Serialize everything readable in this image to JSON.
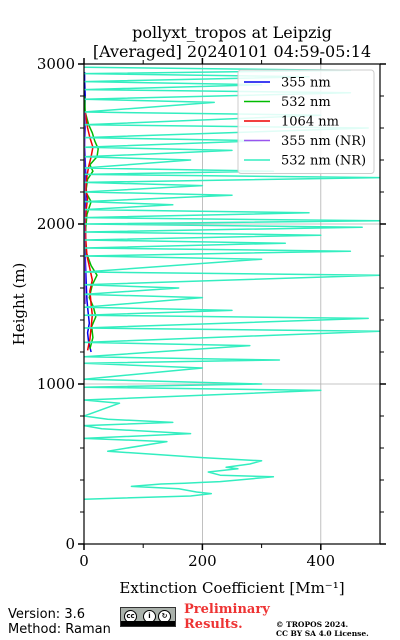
{
  "chart_data": {
    "type": "line",
    "title": "pollyxt_tropos at Leipzig",
    "subtitle": "[Averaged] 20240101 04:59-05:14",
    "xlabel": "Extinction Coefficient [Mm⁻¹]",
    "ylabel": "Height (m)",
    "xlim": [
      0,
      500
    ],
    "ylim": [
      0,
      3000
    ],
    "xticks": [
      "0",
      "200",
      "400"
    ],
    "yticks": [
      "0",
      "1000",
      "2000",
      "3000"
    ],
    "grid": true,
    "legend_position": "top-right",
    "series": [
      {
        "name": "355 nm",
        "color": "#0000ee",
        "points": [
          [
            12,
            1200
          ],
          [
            8,
            1260
          ],
          [
            6,
            1320
          ],
          [
            9,
            1380
          ],
          [
            7,
            1450
          ],
          [
            5,
            1520
          ],
          [
            4,
            1600
          ],
          [
            3,
            1700
          ],
          [
            2,
            1800
          ],
          [
            2,
            1900
          ],
          [
            3,
            2000
          ],
          [
            2,
            2100
          ],
          [
            4,
            2200
          ],
          [
            3,
            2300
          ],
          [
            2,
            2400
          ],
          [
            1,
            2500
          ],
          [
            2,
            2600
          ],
          [
            1,
            2700
          ],
          [
            2,
            2800
          ],
          [
            1,
            2900
          ],
          [
            1,
            2950
          ]
        ]
      },
      {
        "name": "532 nm",
        "color": "#00bb00",
        "points": [
          [
            10,
            1220
          ],
          [
            15,
            1290
          ],
          [
            13,
            1360
          ],
          [
            20,
            1420
          ],
          [
            16,
            1480
          ],
          [
            9,
            1540
          ],
          [
            14,
            1620
          ],
          [
            22,
            1680
          ],
          [
            12,
            1740
          ],
          [
            4,
            1820
          ],
          [
            2,
            1900
          ],
          [
            3,
            1980
          ],
          [
            5,
            2060
          ],
          [
            12,
            2140
          ],
          [
            3,
            2200
          ],
          [
            6,
            2280
          ],
          [
            15,
            2330
          ],
          [
            10,
            2370
          ],
          [
            22,
            2420
          ],
          [
            24,
            2470
          ],
          [
            18,
            2520
          ],
          [
            14,
            2570
          ],
          [
            8,
            2620
          ],
          [
            2,
            2700
          ],
          [
            1,
            2800
          ]
        ]
      },
      {
        "name": "1064 nm",
        "color": "#ee0000",
        "points": [
          [
            6,
            1210
          ],
          [
            10,
            1280
          ],
          [
            12,
            1350
          ],
          [
            14,
            1430
          ],
          [
            12,
            1500
          ],
          [
            10,
            1580
          ],
          [
            14,
            1650
          ],
          [
            10,
            1720
          ],
          [
            5,
            1800
          ],
          [
            3,
            1900
          ],
          [
            2,
            2000
          ],
          [
            4,
            2100
          ],
          [
            6,
            2160
          ],
          [
            3,
            2220
          ],
          [
            5,
            2300
          ],
          [
            8,
            2360
          ],
          [
            12,
            2420
          ],
          [
            15,
            2480
          ],
          [
            10,
            2540
          ],
          [
            6,
            2600
          ],
          [
            2,
            2700
          ]
        ]
      },
      {
        "name": "355 nm (NR)",
        "color": "#9955ee",
        "points": [
          [
            2,
            1500
          ],
          [
            1,
            1800
          ],
          [
            1,
            2100
          ],
          [
            1,
            2400
          ],
          [
            1,
            2700
          ]
        ]
      },
      {
        "name": "532 nm (NR)",
        "color": "#33eec0",
        "points": [
          [
            0,
            280
          ],
          [
            180,
            300
          ],
          [
            215,
            315
          ],
          [
            190,
            325
          ],
          [
            160,
            345
          ],
          [
            80,
            360
          ],
          [
            130,
            375
          ],
          [
            170,
            380
          ],
          [
            200,
            385
          ],
          [
            230,
            390
          ],
          [
            320,
            420
          ],
          [
            230,
            430
          ],
          [
            210,
            450
          ],
          [
            260,
            470
          ],
          [
            240,
            480
          ],
          [
            280,
            500
          ],
          [
            300,
            520
          ],
          [
            200,
            540
          ],
          [
            120,
            560
          ],
          [
            40,
            580
          ],
          [
            140,
            640
          ],
          [
            0,
            660
          ],
          [
            180,
            690
          ],
          [
            30,
            720
          ],
          [
            0,
            740
          ],
          [
            150,
            760
          ],
          [
            40,
            780
          ],
          [
            0,
            800
          ],
          [
            60,
            880
          ],
          [
            0,
            900
          ],
          [
            400,
            960
          ],
          [
            0,
            980
          ],
          [
            300,
            1000
          ],
          [
            0,
            1030
          ],
          [
            200,
            1100
          ],
          [
            0,
            1130
          ],
          [
            330,
            1150
          ],
          [
            0,
            1170
          ],
          [
            280,
            1240
          ],
          [
            0,
            1260
          ],
          [
            500,
            1330
          ],
          [
            0,
            1350
          ],
          [
            480,
            1410
          ],
          [
            0,
            1430
          ],
          [
            250,
            1460
          ],
          [
            0,
            1480
          ],
          [
            200,
            1540
          ],
          [
            0,
            1560
          ],
          [
            160,
            1600
          ],
          [
            0,
            1620
          ],
          [
            500,
            1680
          ],
          [
            0,
            1700
          ],
          [
            300,
            1780
          ],
          [
            0,
            1800
          ],
          [
            450,
            1830
          ],
          [
            0,
            1850
          ],
          [
            340,
            1880
          ],
          [
            0,
            1900
          ],
          [
            400,
            1930
          ],
          [
            0,
            1950
          ],
          [
            470,
            1980
          ],
          [
            0,
            2000
          ],
          [
            500,
            2020
          ],
          [
            0,
            2040
          ],
          [
            380,
            2070
          ],
          [
            0,
            2090
          ],
          [
            150,
            2120
          ],
          [
            0,
            2140
          ],
          [
            250,
            2180
          ],
          [
            0,
            2200
          ],
          [
            200,
            2240
          ],
          [
            0,
            2260
          ],
          [
            500,
            2290
          ],
          [
            0,
            2310
          ],
          [
            320,
            2330
          ],
          [
            0,
            2350
          ],
          [
            180,
            2400
          ],
          [
            0,
            2420
          ],
          [
            250,
            2460
          ],
          [
            0,
            2480
          ],
          [
            300,
            2520
          ],
          [
            0,
            2540
          ],
          [
            480,
            2600
          ],
          [
            0,
            2620
          ],
          [
            400,
            2680
          ],
          [
            0,
            2700
          ],
          [
            220,
            2760
          ],
          [
            0,
            2780
          ],
          [
            450,
            2820
          ],
          [
            0,
            2840
          ],
          [
            300,
            2870
          ],
          [
            0,
            2890
          ],
          [
            380,
            2920
          ],
          [
            0,
            2940
          ],
          [
            450,
            2960
          ],
          [
            0,
            2980
          ]
        ]
      }
    ]
  },
  "footer": {
    "version": "Version: 3.6",
    "method": "Method: Raman",
    "license_badge": "cc-by-sa-icon",
    "preliminary": [
      "Preliminary",
      "Results."
    ],
    "copyright": [
      "© TROPOS 2024.",
      "CC BY SA 4.0 License."
    ]
  }
}
